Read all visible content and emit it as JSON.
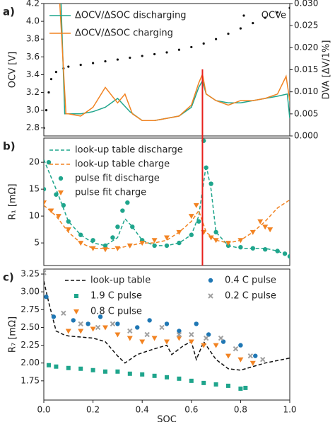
{
  "chart_data": [
    {
      "type": "line",
      "label": "a)",
      "ylabel": "OCV [V]",
      "y2label": "DVA [ΔV/1%]",
      "xlim": [
        0,
        1
      ],
      "ylim": [
        2.71,
        4.2
      ],
      "y2lim": [
        0,
        0.03
      ],
      "yticks": [
        2.8,
        {
          "value": 3.0,
          "label": "3.0"
        },
        3.2,
        3.4,
        3.6,
        3.8,
        {
          "value": 4.0,
          "label": "4.0"
        },
        4.2
      ],
      "y2ticks": [
        {
          "value": 0,
          "label": "0.000"
        },
        {
          "value": 0.005,
          "label": "0.005"
        },
        {
          "value": 0.01,
          "label": "0.010"
        },
        {
          "value": 0.015,
          "label": "0.015"
        },
        {
          "value": 0.02,
          "label": "0.020"
        },
        {
          "value": 0.025,
          "label": "0.025"
        },
        {
          "value": 0.03,
          "label": "0.030"
        }
      ],
      "vline_x": 0.645,
      "vline_color": "#e8201c",
      "series": [
        {
          "name": "OCVe",
          "color": "#111111",
          "style": "scatter",
          "marker": "dot",
          "x": [
            0,
            0.01,
            0.02,
            0.03,
            0.05,
            0.08,
            0.1,
            0.15,
            0.2,
            0.25,
            0.3,
            0.35,
            0.4,
            0.45,
            0.5,
            0.55,
            0.6,
            0.65,
            0.7,
            0.75,
            0.8,
            0.85,
            0.9,
            0.95,
            1.0
          ],
          "values": [
            2.8,
            3.0,
            3.2,
            3.35,
            3.43,
            3.47,
            3.49,
            3.51,
            3.53,
            3.55,
            3.57,
            3.59,
            3.61,
            3.63,
            3.65,
            3.68,
            3.71,
            3.75,
            3.8,
            3.86,
            3.92,
            3.98,
            4.04,
            4.1,
            4.15
          ]
        },
        {
          "name": "ΔOCV/ΔSOC discharging",
          "color": "#1fa58c",
          "style": "line",
          "axis": "y2",
          "x": [
            0.07,
            0.085,
            0.1,
            0.15,
            0.2,
            0.25,
            0.3,
            0.35,
            0.4,
            0.45,
            0.5,
            0.55,
            0.6,
            0.63,
            0.645,
            0.66,
            0.7,
            0.75,
            0.8,
            0.85,
            0.9,
            0.95,
            0.99,
            1.0
          ],
          "values": [
            0.03,
            0.005,
            0.005,
            0.005,
            0.0055,
            0.0065,
            0.0085,
            0.0055,
            0.0035,
            0.0035,
            0.004,
            0.0045,
            0.0065,
            0.011,
            0.0125,
            0.0095,
            0.008,
            0.0075,
            0.0075,
            0.008,
            0.0085,
            0.009,
            0.0095,
            0.004
          ]
        },
        {
          "name": "ΔOCV/ΔSOC charging",
          "color": "#f28322",
          "style": "line",
          "axis": "y2",
          "x": [
            0.065,
            0.075,
            0.09,
            0.1,
            0.15,
            0.2,
            0.25,
            0.3,
            0.33,
            0.36,
            0.4,
            0.45,
            0.5,
            0.55,
            0.6,
            0.63,
            0.645,
            0.66,
            0.7,
            0.75,
            0.8,
            0.85,
            0.9,
            0.95,
            0.985,
            1.0
          ],
          "values": [
            0.03,
            0.02,
            0.005,
            0.005,
            0.0045,
            0.0065,
            0.011,
            0.0075,
            0.0095,
            0.005,
            0.0035,
            0.0035,
            0.004,
            0.0045,
            0.007,
            0.012,
            0.014,
            0.0095,
            0.008,
            0.007,
            0.008,
            0.008,
            0.0085,
            0.0095,
            0.0135,
            0.008
          ]
        }
      ]
    },
    {
      "type": "line",
      "label": "b)",
      "ylabel": "R₁ [mΩ]",
      "xlim": [
        0,
        1
      ],
      "ylim": [
        0.8,
        24.5
      ],
      "yticks": [
        5,
        10,
        15,
        20
      ],
      "series": [
        {
          "name": "look-up table discharge",
          "color": "#1fa58c",
          "style": "dashed",
          "x": [
            0,
            0.05,
            0.1,
            0.15,
            0.2,
            0.25,
            0.3,
            0.33,
            0.36,
            0.4,
            0.45,
            0.5,
            0.55,
            0.6,
            0.63,
            0.66,
            0.68,
            0.7,
            0.75,
            0.8,
            0.85,
            0.9,
            0.95,
            1.0
          ],
          "values": [
            20.5,
            15,
            9,
            6.5,
            5,
            4.5,
            6,
            9.5,
            8,
            5.5,
            4.5,
            4.5,
            5,
            6.5,
            10,
            19.5,
            15,
            7,
            4.5,
            4,
            4,
            4,
            3.5,
            2.5
          ]
        },
        {
          "name": "look-up table charge",
          "color": "#f28322",
          "style": "dashed",
          "x": [
            0,
            0.05,
            0.1,
            0.15,
            0.2,
            0.25,
            0.3,
            0.35,
            0.4,
            0.45,
            0.5,
            0.55,
            0.6,
            0.63,
            0.66,
            0.7,
            0.75,
            0.8,
            0.85,
            0.9,
            0.95,
            1.0
          ],
          "values": [
            12,
            10,
            7,
            5,
            4,
            4,
            4,
            4.5,
            5,
            5,
            5.5,
            7,
            9,
            11,
            7,
            5.5,
            5,
            5.5,
            7,
            9,
            11.5,
            13
          ]
        },
        {
          "name": "pulse fit discharge",
          "color": "#1fa58c",
          "style": "scatter",
          "marker": "circle",
          "x": [
            0.0,
            0.02,
            0.05,
            0.08,
            0.1,
            0.15,
            0.2,
            0.25,
            0.28,
            0.3,
            0.32,
            0.34,
            0.36,
            0.4,
            0.45,
            0.5,
            0.55,
            0.6,
            0.63,
            0.65,
            0.66,
            0.68,
            0.7,
            0.75,
            0.8,
            0.85,
            0.9,
            0.95,
            0.98,
            1.0
          ],
          "values": [
            15,
            20,
            14,
            12,
            9,
            6.5,
            5.5,
            4.5,
            6,
            8,
            11,
            12.5,
            8,
            5.5,
            4.5,
            4.5,
            5,
            6.5,
            9,
            24,
            19,
            16,
            7,
            4.5,
            4.2,
            4,
            3.8,
            3.5,
            3,
            2.5
          ]
        },
        {
          "name": "pulse fit charge",
          "color": "#f28322",
          "style": "scatter",
          "marker": "tri",
          "x": [
            0.0,
            0.03,
            0.06,
            0.1,
            0.15,
            0.2,
            0.25,
            0.3,
            0.35,
            0.4,
            0.45,
            0.5,
            0.55,
            0.6,
            0.62,
            0.65,
            0.68,
            0.7,
            0.75,
            0.8,
            0.85,
            0.88,
            0.9,
            0.92
          ],
          "values": [
            12.5,
            11,
            10,
            7.5,
            5,
            4,
            3.8,
            4,
            4.5,
            5,
            5.5,
            6,
            7,
            10,
            12,
            7,
            6,
            5.5,
            5,
            5.5,
            7,
            9,
            8,
            7.5
          ]
        }
      ]
    },
    {
      "type": "line",
      "label": "c)",
      "ylabel": "R₇ [mΩ]",
      "xlabel": "SOC",
      "xlim": [
        0,
        1
      ],
      "ylim": [
        1.48,
        3.32
      ],
      "xticks": [
        {
          "value": 0,
          "label": "0.0"
        },
        0.2,
        0.4,
        0.6,
        0.8,
        {
          "value": 1,
          "label": "1.0"
        }
      ],
      "yticks": [
        1.75,
        {
          "value": 2,
          "label": "2.00"
        },
        2.25,
        {
          "value": 2.5,
          "label": "2.50"
        },
        2.75,
        {
          "value": 3,
          "label": "3.00"
        },
        3.25
      ],
      "series": [
        {
          "name": "look-up table",
          "color": "#111111",
          "style": "dashed",
          "x": [
            0,
            0.02,
            0.05,
            0.08,
            0.1,
            0.2,
            0.25,
            0.3,
            0.33,
            0.38,
            0.45,
            0.5,
            0.52,
            0.57,
            0.6,
            0.62,
            0.65,
            0.7,
            0.75,
            0.8,
            0.85,
            0.9,
            1.0
          ],
          "values": [
            3.15,
            2.85,
            2.45,
            2.4,
            2.38,
            2.35,
            2.3,
            2.1,
            2.0,
            2.12,
            2.2,
            2.25,
            2.12,
            2.25,
            2.3,
            2.05,
            2.3,
            2.05,
            1.92,
            1.9,
            1.95,
            2.0,
            2.07
          ]
        },
        {
          "name": "1.9 C pulse",
          "color": "#1fa58c",
          "style": "scatter",
          "marker": "square",
          "x": [
            0.02,
            0.05,
            0.1,
            0.15,
            0.2,
            0.25,
            0.3,
            0.35,
            0.4,
            0.45,
            0.5,
            0.55,
            0.6,
            0.65,
            0.7,
            0.75,
            0.8,
            0.82
          ],
          "values": [
            1.97,
            1.95,
            1.93,
            1.92,
            1.9,
            1.88,
            1.88,
            1.85,
            1.84,
            1.82,
            1.8,
            1.78,
            1.75,
            1.72,
            1.7,
            1.68,
            1.64,
            1.65
          ]
        },
        {
          "name": "0.8 C pulse",
          "color": "#f28322",
          "style": "scatter",
          "marker": "tri",
          "x": [
            0.1,
            0.15,
            0.2,
            0.25,
            0.3,
            0.35,
            0.4,
            0.45,
            0.5,
            0.55,
            0.6,
            0.65,
            0.7,
            0.75,
            0.8,
            0.85
          ],
          "values": [
            2.45,
            2.45,
            2.48,
            2.5,
            2.4,
            2.35,
            2.3,
            2.35,
            2.3,
            2.35,
            2.3,
            2.25,
            2.25,
            2.1,
            2.05,
            2.0
          ]
        },
        {
          "name": "0.4 C pulse",
          "color": "#1f77b4",
          "style": "scatter",
          "marker": "circle",
          "x": [
            0.01,
            0.04,
            0.12,
            0.18,
            0.23,
            0.3,
            0.38,
            0.43,
            0.5,
            0.55,
            0.62,
            0.67,
            0.73,
            0.8,
            0.86
          ],
          "values": [
            2.93,
            2.65,
            2.6,
            2.55,
            2.65,
            2.55,
            2.5,
            2.6,
            2.55,
            2.45,
            2.55,
            2.4,
            2.3,
            2.25,
            2.1
          ]
        },
        {
          "name": "0.2 C pulse",
          "color": "#a0a0a0",
          "style": "scatter",
          "marker": "x",
          "x": [
            0,
            0.08,
            0.15,
            0.22,
            0.28,
            0.35,
            0.42,
            0.48,
            0.55,
            0.6,
            0.66,
            0.72,
            0.78,
            0.84,
            0.89
          ],
          "values": [
            3.27,
            2.7,
            2.55,
            2.5,
            2.55,
            2.45,
            2.4,
            2.5,
            2.4,
            2.4,
            2.35,
            2.35,
            2.2,
            2.1,
            2.05
          ]
        }
      ]
    }
  ]
}
